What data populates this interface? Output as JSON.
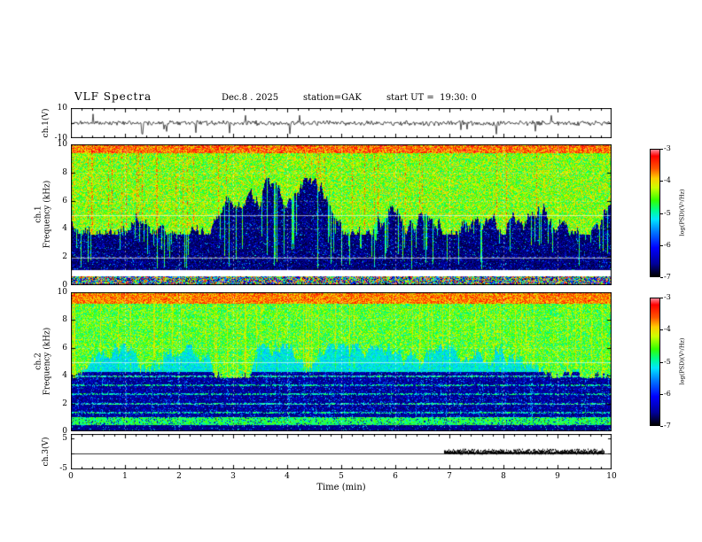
{
  "header": {
    "title": "VLF Spectra",
    "date": "Dec.8 . 2025",
    "station": "station=GAK",
    "start_ut": "start UT =  19:30: 0"
  },
  "x_axis": {
    "label": "Time (min)",
    "ticks": [
      "0",
      "1",
      "2",
      "3",
      "4",
      "5",
      "6",
      "7",
      "8",
      "9",
      "10"
    ],
    "min": 0,
    "max": 10
  },
  "colorbar": {
    "label": "log(PSD)(V²/Hz)",
    "ticks": [
      "-3",
      "-4",
      "-5",
      "-6",
      "-7"
    ],
    "min": -7,
    "max": -3,
    "stops": [
      {
        "v": -7.0,
        "c": "#000000"
      },
      {
        "v": -6.6,
        "c": "#000099"
      },
      {
        "v": -6.1,
        "c": "#0000ff"
      },
      {
        "v": -5.6,
        "c": "#0077ff"
      },
      {
        "v": -5.2,
        "c": "#00e5ff"
      },
      {
        "v": -4.9,
        "c": "#00ff88"
      },
      {
        "v": -4.6,
        "c": "#33ff00"
      },
      {
        "v": -4.2,
        "c": "#ccff00"
      },
      {
        "v": -3.9,
        "c": "#ffcc00"
      },
      {
        "v": -3.6,
        "c": "#ff5500"
      },
      {
        "v": -3.2,
        "c": "#ff0000"
      },
      {
        "v": -3.0,
        "c": "#ff8899"
      }
    ]
  },
  "panels": {
    "wave1": {
      "ylabel": "ch.1(V)",
      "ytick_top": "10",
      "ytick_bottom": "-10",
      "ylim": [
        -10,
        10
      ]
    },
    "spec1": {
      "ylabel_channel": "ch.1",
      "ylabel_axis": "Frequency (kHz)",
      "yticks": [
        "10",
        "8",
        "6",
        "4",
        "2",
        "0"
      ],
      "ylim": [
        0,
        10
      ]
    },
    "spec2": {
      "ylabel_channel": "ch.2",
      "ylabel_axis": "Frequency (kHz)",
      "yticks": [
        "10",
        "8",
        "6",
        "4",
        "2",
        "0"
      ],
      "ylim": [
        0,
        10
      ]
    },
    "wave3": {
      "ylabel": "ch.3(V)",
      "ytick_top": "5",
      "ytick_bottom": "-5",
      "ylim": [
        -5,
        5
      ]
    }
  },
  "chart_data": [
    {
      "id": "ch1_waveform",
      "type": "line",
      "name": "ch.1 time series",
      "xlim": [
        0,
        10
      ],
      "x_unit": "min",
      "ylim": [
        -10,
        10
      ],
      "y_unit": "V",
      "baseline": 0,
      "summary": "continuous broadband noise of roughly ±2 V with frequent impulsive spikes, mostly negative, reaching about -9 V and +6 V",
      "sim": {
        "seed": 303,
        "noise_amp": 1.3,
        "spike_prob": 0.014
      }
    },
    {
      "id": "ch1_spectrogram",
      "type": "heatmap",
      "name": "ch.1 VLF spectrogram",
      "xlim": [
        0,
        10
      ],
      "x_unit": "min",
      "ylim": [
        0,
        10
      ],
      "y_unit": "kHz",
      "zlim": [
        -7,
        -3
      ],
      "z_label": "log(PSD)(V²/Hz)",
      "bands": [
        {
          "f_range": [
            9.4,
            10
          ],
          "mean_psd": -3.9,
          "desc": "intense orange-red band at top edge"
        },
        {
          "f_range": [
            6,
            9.4
          ],
          "mean_psd": -4.6,
          "desc": "green-yellow hiss with jagged lower edge varying ~4-7.5 kHz"
        },
        {
          "f_range": [
            1.1,
            6
          ],
          "mean_psd": -6.7,
          "desc": "dark background with blue speckle crossed by broadband vertical bursts"
        },
        {
          "f_range": [
            0.65,
            1.05
          ],
          "mean_psd": null,
          "desc": "blank (no data) gap"
        },
        {
          "f_range": [
            0,
            0.65
          ],
          "mean_psd": -5.0,
          "desc": "multicolour speckled strip"
        }
      ],
      "vertical_bursts": "sferic-like broadband columns every few seconds reaching down to ~1 kHz",
      "artifacts": {
        "white_rows_khz": [
          1.95,
          4.95
        ]
      },
      "sim": {
        "seed": 101,
        "burst_prob": 0.13
      }
    },
    {
      "id": "ch2_spectrogram",
      "type": "heatmap",
      "name": "ch.2 VLF spectrogram",
      "xlim": [
        0,
        10
      ],
      "x_unit": "min",
      "ylim": [
        0,
        10
      ],
      "y_unit": "kHz",
      "zlim": [
        -7,
        -3
      ],
      "z_label": "log(PSD)(V²/Hz)",
      "bands": [
        {
          "f_range": [
            9.15,
            10
          ],
          "mean_psd": -4.1,
          "desc": "yellow-orange band at top edge"
        },
        {
          "f_range": [
            5,
            9.15
          ],
          "mean_psd": -4.9,
          "desc": "green hiss with yellow vertical streaks, jagged lower edge"
        },
        {
          "f_range": [
            4.25,
            5
          ],
          "mean_psd": -5.3,
          "desc": "cyan-green band"
        },
        {
          "f_range": [
            1,
            4.25
          ],
          "mean_psd": -6.6,
          "desc": "dark background with dotted horizontal emission lines"
        },
        {
          "f_range": [
            0.45,
            1
          ],
          "mean_psd": -5.0,
          "desc": "green band"
        },
        {
          "f_range": [
            0,
            0.45
          ],
          "mean_psd": -6.7,
          "desc": "dark strip"
        }
      ],
      "h_lines_khz": [
        1.35,
        2.0,
        2.65,
        3.3,
        3.95
      ],
      "artifacts": {
        "white_rows_khz": [
          4.95
        ]
      },
      "sim": {
        "seed": 202,
        "burst_prob": 0.1,
        "yellow_col_prob": 0.08
      }
    },
    {
      "id": "ch3_waveform",
      "type": "line",
      "name": "ch.3 time series",
      "xlim": [
        0,
        10
      ],
      "x_unit": "min",
      "ylim": [
        -5,
        5
      ],
      "y_unit": "V",
      "baseline": 0,
      "event": {
        "t_start": 6.9,
        "t_end": 9.85,
        "level": 0.8,
        "desc": "dense dark noise band just above baseline"
      },
      "summary": "flat near 0 V; dense dark band from about 6.9 to 9.85 min",
      "sim": {
        "seed": 404
      }
    }
  ]
}
